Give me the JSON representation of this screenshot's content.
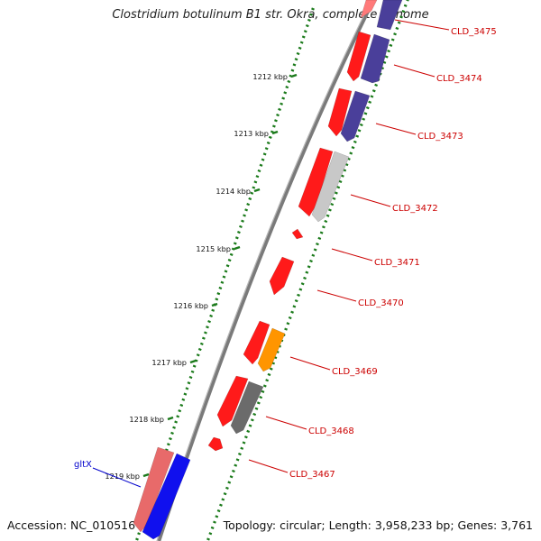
{
  "title": "Clostridium botulinum B1 str. Okra, complete genome",
  "footer": {
    "accession": "Accession: NC_010516",
    "topology": "Topology: circular; Length: 3,958,233 bp; Genes: 3,761"
  },
  "colors": {
    "forward_cds": "#ff1a1a",
    "reverse_cds": "#4a3f9a",
    "pseudo_light": "#c8c8c8",
    "pseudo_dark": "#6b6b6b",
    "orange_feature": "#ff9500",
    "rrna_blue": "#1010ee",
    "ticks": "#1a7a1a",
    "locus_label": "#cc0000",
    "gene_label": "#0000cc"
  },
  "scale_labels": [
    "1212 kbp",
    "1213 kbp",
    "1214 kbp",
    "1215 kbp",
    "1216 kbp",
    "1217 kbp",
    "1218 kbp",
    "1219 kbp"
  ],
  "locus_labels": [
    "CLD_3475",
    "CLD_3474",
    "CLD_3473",
    "CLD_3472",
    "CLD_3471",
    "CLD_3470",
    "CLD_3469",
    "CLD_3468",
    "CLD_3467"
  ],
  "gene_labels": [
    "gltX"
  ]
}
